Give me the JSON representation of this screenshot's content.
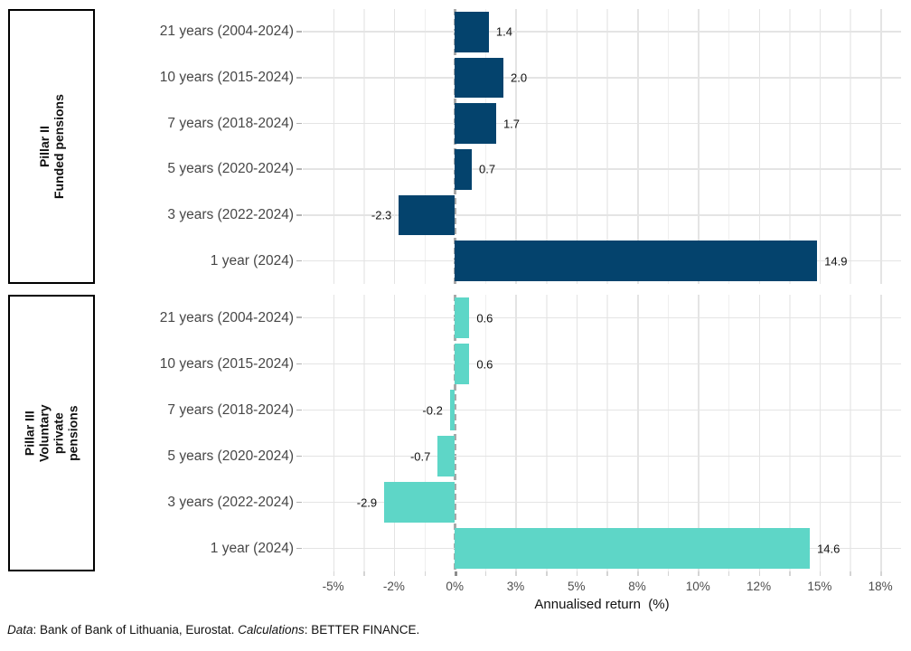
{
  "chart_data": {
    "type": "bar",
    "orientation": "horizontal",
    "title": "",
    "xlabel": "Annualised return  (%)",
    "categories": [
      "21 years (2004-2024)",
      "10 years (2015-2024)",
      "7 years (2018-2024)",
      "5 years (2020-2024)",
      "3 years (2022-2024)",
      "1 year (2024)"
    ],
    "panels": [
      {
        "id": "pillar-2",
        "label_lines": [
          "Pillar II",
          "Funded pensions"
        ],
        "bar_color": "#04436D",
        "values": [
          1.4,
          2.0,
          1.7,
          0.7,
          -2.3,
          14.9
        ],
        "value_labels": [
          "1.4",
          "2.0",
          "1.7",
          "0.7",
          "-2.3",
          "14.9"
        ]
      },
      {
        "id": "pillar-3",
        "label_lines": [
          "Pillar III",
          "Voluntary",
          "private",
          "pensions"
        ],
        "bar_color": "#5ED6C7",
        "values": [
          0.6,
          0.6,
          -0.2,
          -0.7,
          -2.9,
          14.6
        ],
        "value_labels": [
          "0.6",
          "0.6",
          "-0.2",
          "-0.7",
          "-2.9",
          "14.6"
        ]
      }
    ],
    "x_ticks": [
      {
        "v": -5,
        "label": "-5%"
      },
      {
        "v": -2.5,
        "label": "-2%"
      },
      {
        "v": 0,
        "label": "0%"
      },
      {
        "v": 2.5,
        "label": "3%"
      },
      {
        "v": 5,
        "label": "5%"
      },
      {
        "v": 7.5,
        "label": "8%"
      },
      {
        "v": 10,
        "label": "10%"
      },
      {
        "v": 12.5,
        "label": "12%"
      },
      {
        "v": 15,
        "label": "15%"
      },
      {
        "v": 17.5,
        "label": "18%"
      }
    ],
    "x_minor_gridlines": [
      -3.75,
      -1.25,
      1.25,
      3.75,
      6.25,
      8.75,
      11.25,
      13.75,
      16.25
    ],
    "xlim": [
      -6.25,
      18.35
    ],
    "grid": true,
    "legend": "none",
    "colors": {
      "gridline_major": "#E4E4E4",
      "gridline_minor": "#EFEFEF",
      "zero_line": "#A9A9A9",
      "axis_text": "#4D4D4D",
      "value_text": "#111111"
    }
  },
  "footer": {
    "segments": [
      {
        "text": "Data",
        "italic": true
      },
      {
        "text": ": Bank of Bank of Lithuania, Eurostat. ",
        "italic": false
      },
      {
        "text": "Calculations",
        "italic": true
      },
      {
        "text": ": BETTER FINANCE.",
        "italic": false
      }
    ]
  }
}
